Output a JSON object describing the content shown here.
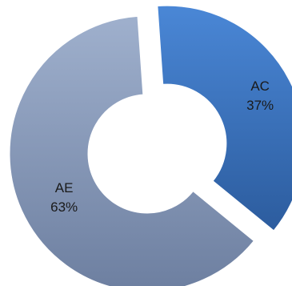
{
  "chart_data": {
    "type": "pie",
    "variant": "donut",
    "title": "",
    "slices": [
      {
        "category": "AC",
        "percent_label": "37%",
        "value": 37,
        "color_light": "#4a87d6",
        "color_dark": "#2c5c9e",
        "exploded": true
      },
      {
        "category": "AE",
        "percent_label": "63%",
        "value": 63,
        "color_light": "#9fb0cd",
        "color_dark": "#6d7fa0",
        "exploded": false
      }
    ],
    "legend": "none",
    "data_labels": "inside"
  }
}
